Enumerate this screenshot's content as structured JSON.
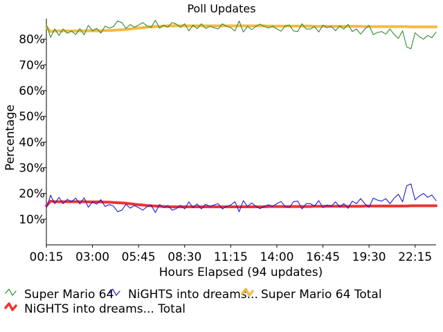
{
  "chart_data": {
    "type": "line",
    "title": "Poll Updates",
    "xlabel": "Hours Elapsed (94 updates)",
    "ylabel": "Percentage",
    "x_ticks": [
      "00:15",
      "03:00",
      "05:45",
      "08:30",
      "11:15",
      "14:00",
      "16:45",
      "19:30",
      "22:15"
    ],
    "y_ticks": [
      "10%",
      "20%",
      "30%",
      "40%",
      "50%",
      "60%",
      "70%",
      "80%"
    ],
    "y_tick_values": [
      10,
      20,
      30,
      40,
      50,
      60,
      70,
      80
    ],
    "ylim": [
      0,
      88
    ],
    "update_count": 94,
    "legend_position": "bottom",
    "grid": false,
    "series": [
      {
        "name": "Super Mario 64",
        "color": "#2e8b2e",
        "style": "thin",
        "values": [
          85.8,
          80.7,
          84.0,
          81.5,
          84.0,
          82.3,
          83.2,
          81.8,
          84.1,
          81.7,
          85.4,
          83.3,
          84.2,
          82.4,
          85.1,
          84.3,
          84.9,
          87.1,
          86.5,
          84.2,
          85.7,
          84.7,
          85.5,
          86.5,
          85.2,
          84.6,
          87.4,
          84.3,
          85.5,
          84.7,
          86.5,
          85.9,
          84.6,
          86.0,
          83.3,
          85.5,
          84.1,
          86.0,
          84.2,
          85.0,
          84.5,
          84.0,
          86.0,
          85.0,
          84.5,
          83.2,
          87.1,
          82.8,
          85.0,
          83.7,
          85.0,
          85.9,
          85.0,
          84.4,
          85.0,
          84.0,
          83.1,
          85.2,
          85.5,
          83.2,
          83.0,
          86.0,
          84.0,
          84.0,
          84.9,
          82.8,
          85.5,
          84.5,
          85.0,
          83.3,
          85.2,
          84.0,
          85.8,
          83.0,
          84.0,
          82.0,
          84.0,
          85.4,
          81.8,
          82.6,
          83.0,
          82.0,
          84.0,
          81.8,
          80.3,
          83.3,
          77.0,
          76.3,
          82.5,
          81.0,
          80.0,
          81.5,
          80.6,
          82.8
        ]
      },
      {
        "name": "NiGHTS into dreams...",
        "color": "#1a1acc",
        "style": "thin",
        "values": [
          14.2,
          19.3,
          16.0,
          18.5,
          16.0,
          17.7,
          16.8,
          18.2,
          15.9,
          18.3,
          14.6,
          16.7,
          15.8,
          17.6,
          14.9,
          15.7,
          15.1,
          12.9,
          13.5,
          15.8,
          14.3,
          15.3,
          14.5,
          13.5,
          14.8,
          15.4,
          12.6,
          15.7,
          14.5,
          15.3,
          13.5,
          14.1,
          15.4,
          14.0,
          16.7,
          14.5,
          15.9,
          14.0,
          15.8,
          15.0,
          15.5,
          16.0,
          14.0,
          15.0,
          15.5,
          16.8,
          12.9,
          17.2,
          15.0,
          16.3,
          15.0,
          14.1,
          15.0,
          15.6,
          15.0,
          16.0,
          16.9,
          14.8,
          14.5,
          16.8,
          17.0,
          14.0,
          16.0,
          16.0,
          15.1,
          17.2,
          14.5,
          15.5,
          15.0,
          16.7,
          14.8,
          16.0,
          14.2,
          17.0,
          16.0,
          18.0,
          16.0,
          14.6,
          18.2,
          17.4,
          17.0,
          18.0,
          16.0,
          18.2,
          19.7,
          16.7,
          23.0,
          23.7,
          17.5,
          19.0,
          20.0,
          18.5,
          19.4,
          17.2
        ]
      },
      {
        "name": "Super Mario 64 Total",
        "color": "#f5b942",
        "style": "thick",
        "values": [
          84.8,
          83.0,
          83.2,
          83.2,
          83.2,
          83.2,
          83.2,
          83.2,
          83.2,
          83.2,
          83.3,
          83.3,
          83.3,
          83.3,
          83.4,
          83.4,
          83.5,
          83.6,
          83.7,
          83.8,
          84.0,
          84.2,
          84.4,
          84.5,
          84.7,
          84.8,
          84.9,
          85.0,
          85.1,
          85.2,
          85.2,
          85.2,
          85.2,
          85.2,
          85.2,
          85.2,
          85.2,
          85.2,
          85.2,
          85.2,
          85.2,
          85.2,
          85.2,
          85.2,
          85.2,
          85.2,
          85.2,
          85.2,
          85.2,
          85.2,
          85.2,
          85.2,
          85.2,
          85.1,
          85.1,
          85.1,
          85.1,
          85.1,
          85.1,
          85.1,
          85.1,
          85.1,
          85.1,
          85.1,
          85.0,
          85.0,
          85.0,
          85.0,
          85.0,
          85.0,
          85.0,
          85.0,
          85.0,
          85.0,
          85.0,
          85.0,
          84.9,
          84.9,
          84.9,
          84.9,
          84.9,
          84.9,
          84.9,
          84.9,
          84.9,
          84.9,
          84.9,
          84.8,
          84.8,
          84.8,
          84.8,
          84.8,
          84.8,
          84.8
        ]
      },
      {
        "name": "NiGHTS into dreams... Total",
        "color": "#ee3333",
        "style": "thick",
        "values": [
          15.2,
          17.0,
          16.8,
          16.8,
          16.8,
          16.8,
          16.8,
          16.8,
          16.8,
          16.8,
          16.7,
          16.7,
          16.7,
          16.7,
          16.6,
          16.6,
          16.5,
          16.4,
          16.3,
          16.2,
          16.0,
          15.8,
          15.6,
          15.5,
          15.3,
          15.2,
          15.1,
          15.0,
          14.9,
          14.8,
          14.8,
          14.8,
          14.8,
          14.8,
          14.8,
          14.8,
          14.8,
          14.8,
          14.8,
          14.8,
          14.8,
          14.8,
          14.8,
          14.8,
          14.8,
          14.8,
          14.8,
          14.8,
          14.8,
          14.8,
          14.8,
          14.8,
          14.8,
          14.9,
          14.9,
          14.9,
          14.9,
          14.9,
          14.9,
          14.9,
          14.9,
          14.9,
          14.9,
          14.9,
          15.0,
          15.0,
          15.0,
          15.0,
          15.0,
          15.0,
          15.0,
          15.0,
          15.0,
          15.0,
          15.0,
          15.0,
          15.1,
          15.1,
          15.1,
          15.1,
          15.1,
          15.1,
          15.1,
          15.1,
          15.1,
          15.1,
          15.1,
          15.2,
          15.2,
          15.2,
          15.2,
          15.2,
          15.2,
          15.2
        ]
      }
    ]
  }
}
